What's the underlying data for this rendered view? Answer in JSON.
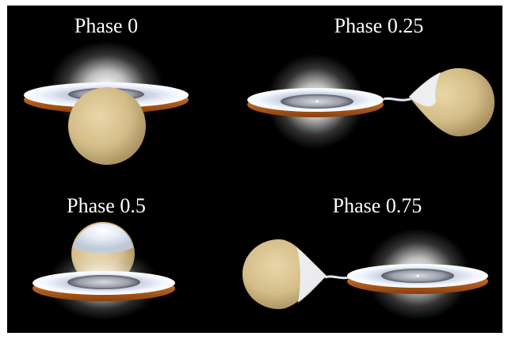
{
  "panels": [
    {
      "title": "Phase 0"
    },
    {
      "title": "Phase 0.25"
    },
    {
      "title": "Phase 0.5"
    },
    {
      "title": "Phase 0.75"
    }
  ],
  "colors": {
    "background": "#000000",
    "frame": "#ffffff",
    "star": "#d9c391",
    "disk_top": "#eef3ff",
    "disk_rim": "#c8661c",
    "glow": "#ffffff"
  }
}
